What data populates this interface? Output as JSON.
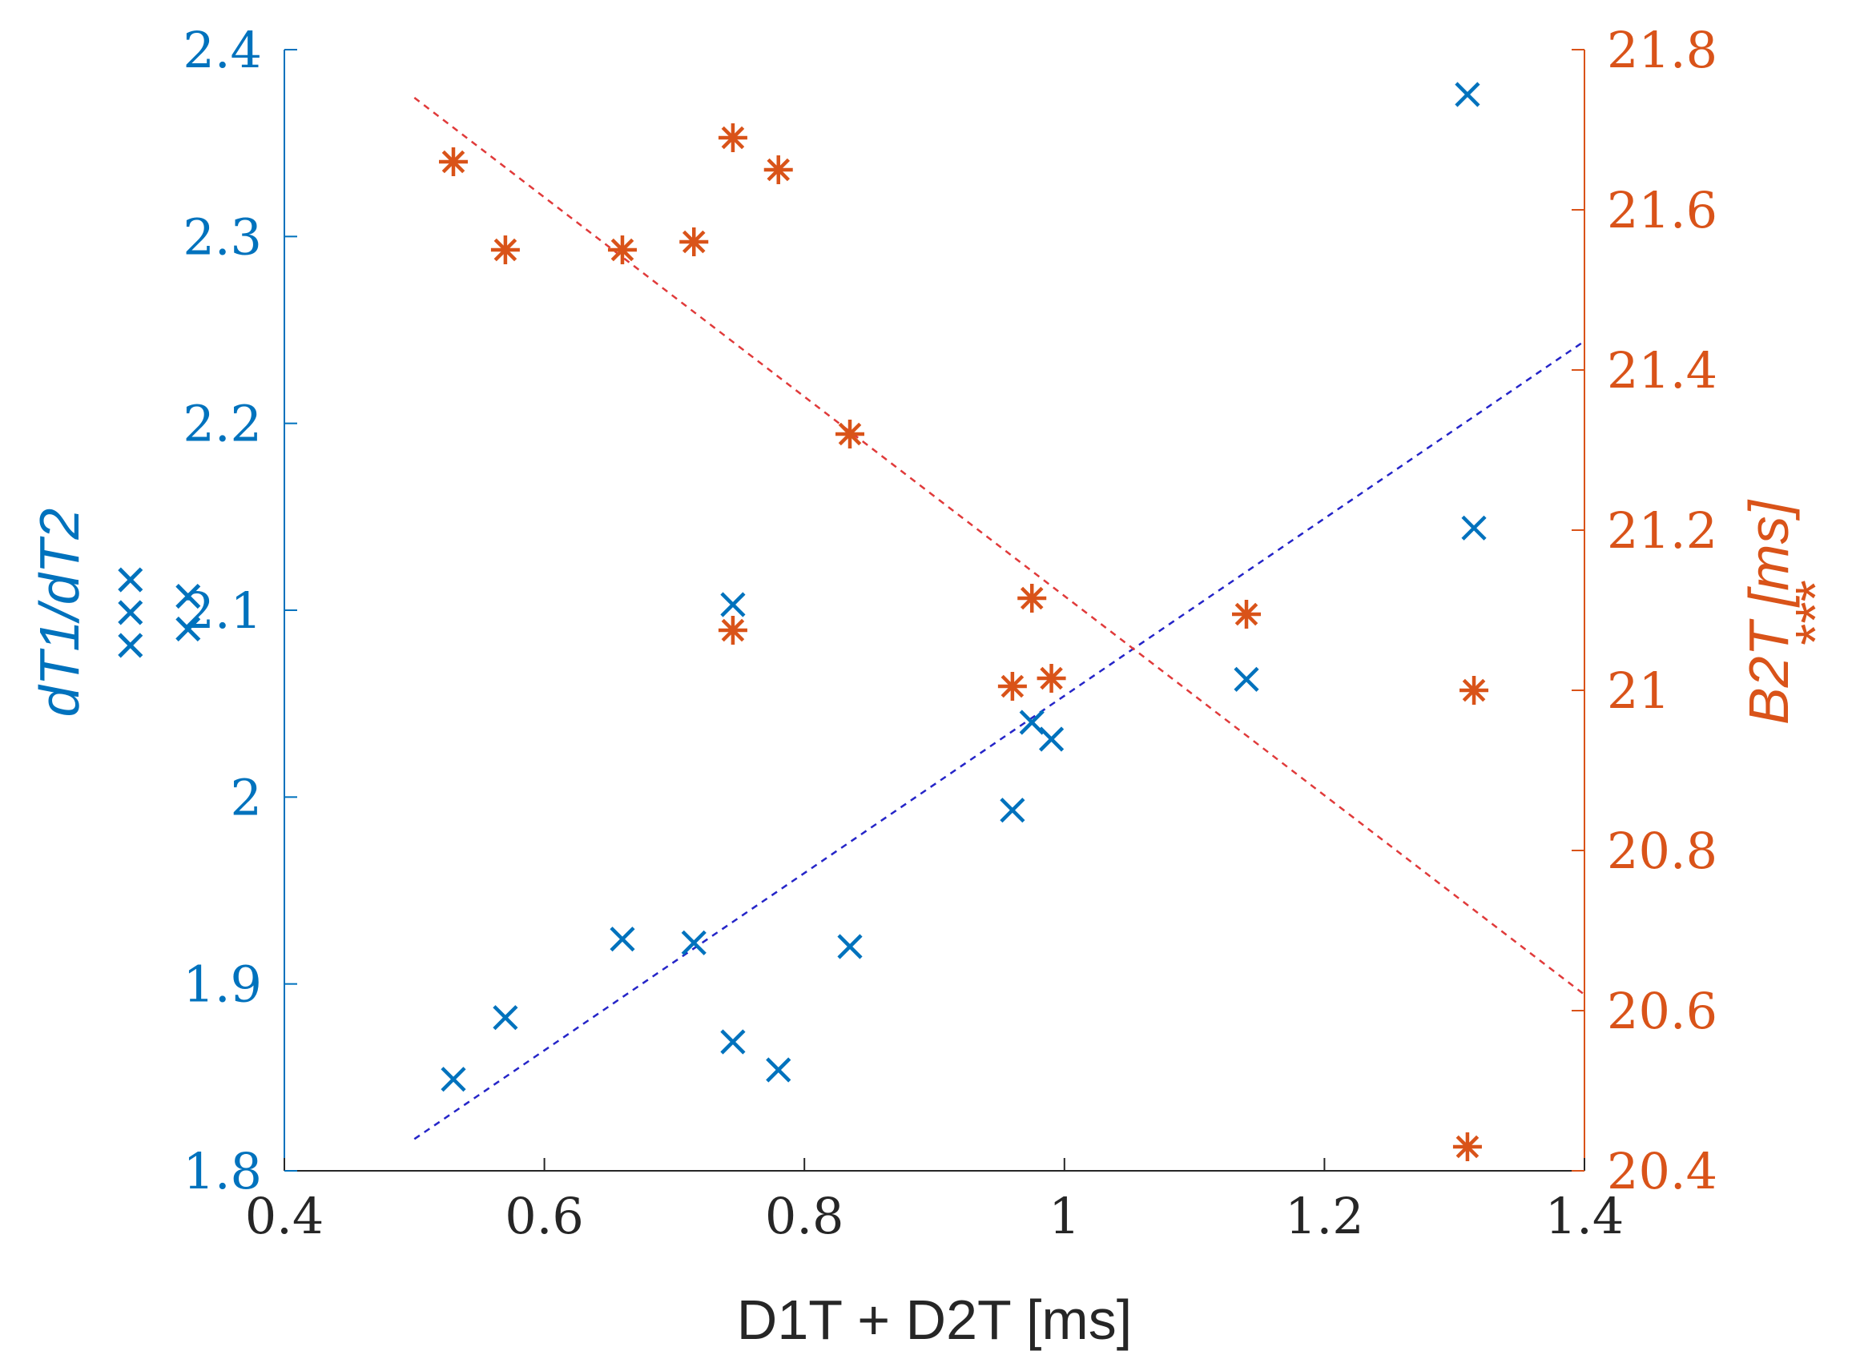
{
  "chart_data": {
    "type": "scatter",
    "title": "",
    "xlabel": "D1T + D2T [ms]",
    "ylabel_left": "dT1/dT2",
    "ylabel_left_marker": "×××\n××",
    "ylabel_right": "B2T [ms]",
    "ylabel_right_marker": "***",
    "xlim": [
      0.4,
      1.4
    ],
    "ylim_left": [
      1.8,
      2.4
    ],
    "ylim_right": [
      20.4,
      21.8
    ],
    "x_ticks": [
      "0.4",
      "0.6",
      "0.8",
      "1",
      "1.2",
      "1.4"
    ],
    "y_left_ticks": [
      "1.8",
      "1.9",
      "2",
      "2.1",
      "2.2",
      "2.3",
      "2.4"
    ],
    "y_right_ticks": [
      "20.4",
      "20.6",
      "20.8",
      "21",
      "21.2",
      "21.4",
      "21.6",
      "21.8"
    ],
    "colors": {
      "left": "#0072bd",
      "right": "#d95319",
      "trend_left": "#2525c8",
      "trend_right": "#e03a3a",
      "axis": "#262626"
    },
    "series": [
      {
        "axis": "left",
        "marker": "x",
        "points": [
          {
            "x": 0.53,
            "y": 1.849
          },
          {
            "x": 0.57,
            "y": 1.882
          },
          {
            "x": 0.66,
            "y": 1.924
          },
          {
            "x": 0.715,
            "y": 1.922
          },
          {
            "x": 0.745,
            "y": 1.869
          },
          {
            "x": 0.78,
            "y": 1.854
          },
          {
            "x": 0.745,
            "y": 2.103
          },
          {
            "x": 0.835,
            "y": 1.92
          },
          {
            "x": 0.96,
            "y": 1.993
          },
          {
            "x": 0.975,
            "y": 2.04
          },
          {
            "x": 0.99,
            "y": 2.031
          },
          {
            "x": 1.14,
            "y": 2.063
          },
          {
            "x": 1.31,
            "y": 2.376
          },
          {
            "x": 1.315,
            "y": 2.144
          }
        ]
      },
      {
        "axis": "right",
        "marker": "asterisk",
        "points": [
          {
            "x": 0.53,
            "y": 21.66
          },
          {
            "x": 0.57,
            "y": 21.55
          },
          {
            "x": 0.66,
            "y": 21.55
          },
          {
            "x": 0.715,
            "y": 21.56
          },
          {
            "x": 0.745,
            "y": 21.69
          },
          {
            "x": 0.78,
            "y": 21.65
          },
          {
            "x": 0.745,
            "y": 21.075
          },
          {
            "x": 0.835,
            "y": 21.32
          },
          {
            "x": 0.96,
            "y": 21.005
          },
          {
            "x": 0.975,
            "y": 21.115
          },
          {
            "x": 0.99,
            "y": 21.015
          },
          {
            "x": 1.14,
            "y": 21.095
          },
          {
            "x": 1.31,
            "y": 20.43
          },
          {
            "x": 1.315,
            "y": 21.0
          }
        ]
      }
    ],
    "trendlines": [
      {
        "axis": "left",
        "x": [
          0.5,
          1.4
        ],
        "y": [
          1.817,
          2.244
        ]
      },
      {
        "axis": "right",
        "x": [
          0.5,
          1.4
        ],
        "y": [
          21.74,
          20.62
        ]
      }
    ]
  }
}
